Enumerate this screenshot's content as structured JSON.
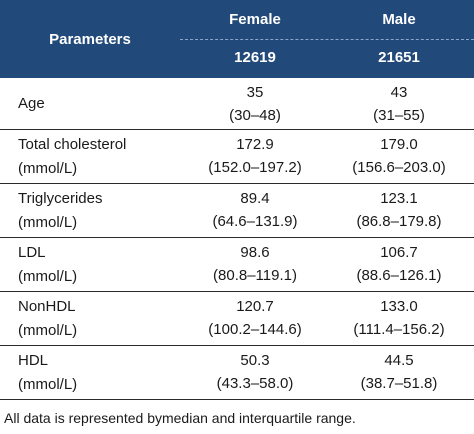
{
  "header": {
    "parameters_label": "Parameters",
    "female_label": "Female",
    "male_label": "Male",
    "female_n": "12619",
    "male_n": "21651"
  },
  "rows": [
    {
      "label_line1": "Age",
      "label_line2": "",
      "female_median": "35",
      "female_iqr": "(30–48)",
      "male_median": "43",
      "male_iqr": "(31–55)"
    },
    {
      "label_line1": "Total cholesterol",
      "label_line2": "(mmol/L)",
      "female_median": "172.9",
      "female_iqr": "(152.0–197.2)",
      "male_median": "179.0",
      "male_iqr": "(156.6–203.0)"
    },
    {
      "label_line1": "Triglycerides",
      "label_line2": "(mmol/L)",
      "female_median": "89.4",
      "female_iqr": "(64.6–131.9)",
      "male_median": "123.1",
      "male_iqr": "(86.8–179.8)"
    },
    {
      "label_line1": "LDL",
      "label_line2": "(mmol/L)",
      "female_median": "98.6",
      "female_iqr": "(80.8–119.1)",
      "male_median": "106.7",
      "male_iqr": "(88.6–126.1)"
    },
    {
      "label_line1": "NonHDL",
      "label_line2": "(mmol/L)",
      "female_median": "120.7",
      "female_iqr": "(100.2–144.6)",
      "male_median": "133.0",
      "male_iqr": "(111.4–156.2)"
    },
    {
      "label_line1": "HDL",
      "label_line2": "(mmol/L)",
      "female_median": "50.3",
      "female_iqr": "(43.3–58.0)",
      "male_median": "44.5",
      "male_iqr": "(38.7–51.8)"
    }
  ],
  "footnote": "All data is represented bymedian and interquartile range."
}
